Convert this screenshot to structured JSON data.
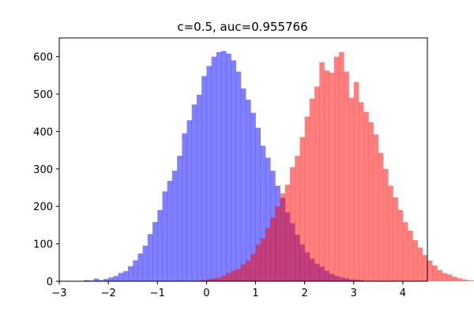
{
  "chart_data": {
    "type": "bar",
    "title": "c=0.5, auc=0.955766",
    "xlim": [
      -3,
      4.5
    ],
    "ylim": [
      0,
      650
    ],
    "xticks": [
      -3,
      -2,
      -1,
      0,
      1,
      2,
      3,
      4
    ],
    "yticks": [
      0,
      100,
      200,
      300,
      400,
      500,
      600
    ],
    "bin_width": 0.1,
    "grid": false,
    "legend": "none",
    "series": [
      {
        "color": "#0000ff",
        "opacity": 0.5,
        "bin_start": -2.5,
        "counts": [
          3,
          2,
          7,
          3,
          6,
          10,
          14,
          22,
          27,
          40,
          56,
          74,
          95,
          126,
          158,
          190,
          240,
          268,
          295,
          335,
          395,
          430,
          472,
          498,
          548,
          575,
          600,
          612,
          615,
          608,
          590,
          560,
          515,
          485,
          450,
          410,
          362,
          330,
          295,
          255,
          223,
          184,
          155,
          124,
          98,
          77,
          60,
          47,
          39,
          28,
          20,
          14,
          10,
          8,
          5,
          4,
          3,
          1
        ]
      },
      {
        "color": "#ff0000",
        "opacity": 0.5,
        "bin_start": -0.5,
        "counts": [
          1,
          1,
          1,
          2,
          3,
          6,
          7,
          9,
          15,
          22,
          28,
          33,
          45,
          55,
          73,
          98,
          115,
          142,
          170,
          200,
          235,
          258,
          305,
          335,
          385,
          440,
          488,
          520,
          585,
          563,
          557,
          600,
          612,
          560,
          490,
          532,
          478,
          452,
          425,
          392,
          343,
          300,
          255,
          224,
          190,
          158,
          135,
          110,
          90,
          70,
          55,
          42,
          30,
          22,
          18,
          12,
          8,
          5,
          3,
          2,
          1,
          1
        ]
      }
    ]
  }
}
